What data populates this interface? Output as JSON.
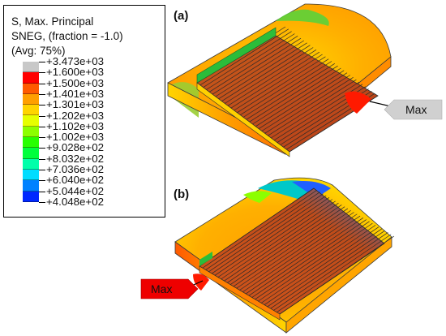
{
  "legend": {
    "title_line1": "S, Max. Principal",
    "title_line2": "SNEG, (fraction = -1.0)",
    "title_line3": "(Avg: 75%)",
    "entries": [
      {
        "label": "+3.473e+03",
        "color": "#c8c8c8"
      },
      {
        "label": "+1.600e+03",
        "color": "#ff0000"
      },
      {
        "label": "+1.500e+03",
        "color": "#ff5a00"
      },
      {
        "label": "+1.401e+03",
        "color": "#ff9f00"
      },
      {
        "label": "+1.301e+03",
        "color": "#ffd400"
      },
      {
        "label": "+1.202e+03",
        "color": "#e6ff00"
      },
      {
        "label": "+1.102e+03",
        "color": "#8cff00"
      },
      {
        "label": "+1.002e+03",
        "color": "#28ff00"
      },
      {
        "label": "+9.028e+02",
        "color": "#00ff3c"
      },
      {
        "label": "+8.032e+02",
        "color": "#00ffaa"
      },
      {
        "label": "+7.036e+02",
        "color": "#00ddff"
      },
      {
        "label": "+6.040e+02",
        "color": "#0082ff"
      },
      {
        "label": "+5.044e+02",
        "color": "#0028ff"
      },
      {
        "label": "+4.048e+02",
        "color": "#0000c8"
      }
    ]
  },
  "panels": {
    "a": {
      "label": "(a)",
      "callout": "Max"
    },
    "b": {
      "label": "(b)",
      "callout": "Max"
    }
  }
}
